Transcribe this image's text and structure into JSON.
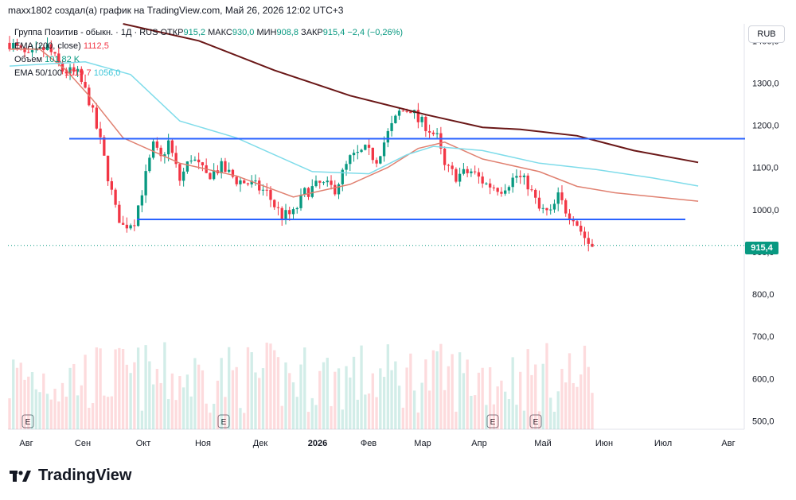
{
  "header": {
    "text": "maxx1802 создал(а) график на TradingView.com, Май 26, 2026 12:02 UTC+3"
  },
  "legend": {
    "symbol": "Группа Позитив - обыкн. · 1Д · RUS",
    "open_label": "ОТКР",
    "open": "915,2",
    "high_label": "МАКС",
    "high": "930,0",
    "low_label": "МИН",
    "low": "908,8",
    "close_label": "ЗАКР",
    "close": "915,4",
    "change": "−2,4 (−0,26%)",
    "ema200_label": "EMA (200, close)",
    "ema200_value": "1112,5",
    "volume_label": "Объем",
    "volume_value": "101,82 K",
    "ema50_100_label": "EMA 50/100",
    "ema50_value": "1019,7",
    "ema100_value": "1056,0"
  },
  "currency": "RUB",
  "last_price": "915,4",
  "brand": "TradingView",
  "chart_data": {
    "type": "candlestick",
    "yticks": [
      "1400,0",
      "1300,0",
      "1200,0",
      "1100,0",
      "1000,0",
      "900,0",
      "800,0",
      "700,0",
      "600,0",
      "500,0"
    ],
    "ylim": [
      480,
      1440
    ],
    "x_labels": [
      "Авг",
      "Сен",
      "Окт",
      "Ноя",
      "Дек",
      "2026",
      "Фев",
      "Мар",
      "Апр",
      "Май",
      "Июн",
      "Июл",
      "Авг"
    ],
    "earnings_markers": [
      "E",
      "E",
      "E",
      "E"
    ],
    "price_path": [
      [
        0,
        1395
      ],
      [
        5,
        1360
      ],
      [
        10,
        1385
      ],
      [
        14,
        1330
      ],
      [
        18,
        1320
      ],
      [
        21,
        1260
      ],
      [
        24,
        1160
      ],
      [
        26,
        1080
      ],
      [
        28,
        1000
      ],
      [
        30,
        960
      ],
      [
        33,
        975
      ],
      [
        36,
        1080
      ],
      [
        38,
        1150
      ],
      [
        40,
        1120
      ],
      [
        42,
        1160
      ],
      [
        45,
        1070
      ],
      [
        48,
        1125
      ],
      [
        52,
        1080
      ],
      [
        56,
        1100
      ],
      [
        60,
        1070
      ],
      [
        64,
        1060
      ],
      [
        68,
        1040
      ],
      [
        70,
        1010
      ],
      [
        72,
        985
      ],
      [
        75,
        990
      ],
      [
        78,
        1040
      ],
      [
        82,
        1060
      ],
      [
        86,
        1050
      ],
      [
        90,
        1120
      ],
      [
        94,
        1140
      ],
      [
        97,
        1120
      ],
      [
        100,
        1180
      ],
      [
        103,
        1230
      ],
      [
        106,
        1240
      ],
      [
        108,
        1210
      ],
      [
        110,
        1200
      ],
      [
        113,
        1170
      ],
      [
        115,
        1100
      ],
      [
        118,
        1080
      ],
      [
        122,
        1090
      ],
      [
        126,
        1060
      ],
      [
        130,
        1050
      ],
      [
        134,
        1080
      ],
      [
        137,
        1060
      ],
      [
        140,
        1000
      ],
      [
        143,
        990
      ],
      [
        145,
        1030
      ],
      [
        147,
        1000
      ],
      [
        149,
        985
      ],
      [
        151,
        950
      ],
      [
        153,
        920
      ],
      [
        154,
        915
      ]
    ],
    "trendlines": [
      {
        "x1": 0,
        "y1": 1168,
        "x2": 180,
        "y2": 1168
      },
      {
        "x1": 0,
        "y1": 977,
        "x2": 165,
        "y2": 977
      }
    ],
    "series": [
      {
        "name": "EMA (200, close)",
        "color": "#6a1717",
        "path": [
          [
            30,
            1440
          ],
          [
            50,
            1400
          ],
          [
            70,
            1330
          ],
          [
            90,
            1270
          ],
          [
            110,
            1225
          ],
          [
            125,
            1195
          ],
          [
            135,
            1190
          ],
          [
            150,
            1175
          ],
          [
            165,
            1140
          ],
          [
            182,
            1112
          ]
        ]
      },
      {
        "name": "EMA 50",
        "color": "#e08070",
        "path": [
          [
            0,
            1380
          ],
          [
            8,
            1380
          ],
          [
            15,
            1330
          ],
          [
            22,
            1260
          ],
          [
            30,
            1170
          ],
          [
            45,
            1110
          ],
          [
            60,
            1080
          ],
          [
            75,
            1030
          ],
          [
            90,
            1060
          ],
          [
            100,
            1100
          ],
          [
            108,
            1145
          ],
          [
            115,
            1160
          ],
          [
            125,
            1120
          ],
          [
            140,
            1090
          ],
          [
            150,
            1055
          ],
          [
            160,
            1040
          ],
          [
            182,
            1020
          ]
        ]
      },
      {
        "name": "EMA 100",
        "color": "#7fdcea",
        "path": [
          [
            0,
            1340
          ],
          [
            20,
            1350
          ],
          [
            32,
            1320
          ],
          [
            45,
            1210
          ],
          [
            60,
            1170
          ],
          [
            80,
            1090
          ],
          [
            95,
            1085
          ],
          [
            105,
            1130
          ],
          [
            112,
            1150
          ],
          [
            125,
            1140
          ],
          [
            140,
            1110
          ],
          [
            155,
            1095
          ],
          [
            170,
            1075
          ],
          [
            182,
            1056
          ]
        ]
      }
    ]
  }
}
